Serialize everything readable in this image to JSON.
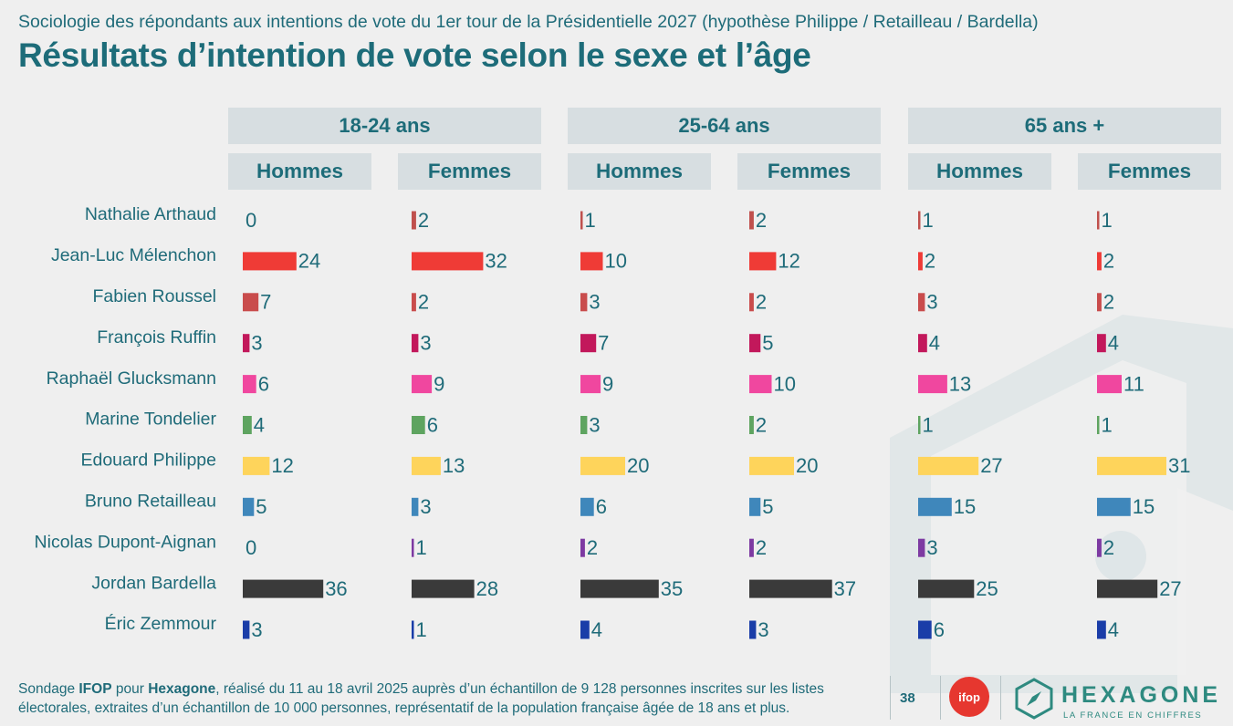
{
  "header": {
    "supertitle": "Sociologie des répondants aux intentions de vote du 1er tour de la Présidentielle 2027 (hypothèse Philippe / Retailleau / Bardella)",
    "title": "Résultats d’intention de vote selon le sexe et l’âge"
  },
  "groups": [
    "18-24 ans",
    "25-64 ans",
    "65 ans +"
  ],
  "sexes": [
    "Hommes",
    "Femmes"
  ],
  "chart_data": {
    "type": "bar",
    "orientation": "horizontal",
    "unit": "%",
    "title": "Résultats d’intention de vote selon le sexe et l’âge",
    "categories": [
      "Nathalie Arthaud",
      "Jean-Luc Mélenchon",
      "Fabien Roussel",
      "François Ruffin",
      "Raphaël Glucksmann",
      "Marine Tondelier",
      "Edouard Philippe",
      "Bruno Retailleau",
      "Nicolas Dupont-Aignan",
      "Jordan Bardella",
      "Éric Zemmour"
    ],
    "colors": [
      "#c0504d",
      "#ef3b36",
      "#c94c4c",
      "#c2185b",
      "#f0479f",
      "#5ea460",
      "#fed45b",
      "#3f87bb",
      "#7d3aa2",
      "#3a3a3a",
      "#1a3da8"
    ],
    "series": [
      {
        "name": "18-24 ans – Hommes",
        "values": [
          0,
          24,
          7,
          3,
          6,
          4,
          12,
          5,
          0,
          36,
          3
        ]
      },
      {
        "name": "18-24 ans – Femmes",
        "values": [
          2,
          32,
          2,
          3,
          9,
          6,
          13,
          3,
          1,
          28,
          1
        ]
      },
      {
        "name": "25-64 ans – Hommes",
        "values": [
          1,
          10,
          3,
          7,
          9,
          3,
          20,
          6,
          2,
          35,
          4
        ]
      },
      {
        "name": "25-64 ans – Femmes",
        "values": [
          2,
          12,
          2,
          5,
          10,
          2,
          20,
          5,
          2,
          37,
          3
        ]
      },
      {
        "name": "65 ans + – Hommes",
        "values": [
          1,
          2,
          3,
          4,
          13,
          1,
          27,
          15,
          3,
          25,
          6
        ]
      },
      {
        "name": "65 ans + – Femmes",
        "values": [
          1,
          2,
          2,
          4,
          11,
          1,
          31,
          15,
          2,
          27,
          4
        ]
      }
    ]
  },
  "footer": {
    "t1": "Sondage ",
    "b1": "IFOP",
    "t2": " pour ",
    "b2": "Hexagone",
    "t3": ", réalisé du 11 au 18 avril 2025 auprès d’un échantillon de 9 128 personnes inscrites sur les listes électorales, extraites d’un échantillon de 10 000 personnes, représentatif de la population française âgée de 18 ans et plus.",
    "page_number": "38"
  },
  "logos": {
    "ifop": "ifop",
    "hexagone_name": "HEXAGONE",
    "hexagone_tagline": "LA FRANCE EN CHIFFRES"
  }
}
